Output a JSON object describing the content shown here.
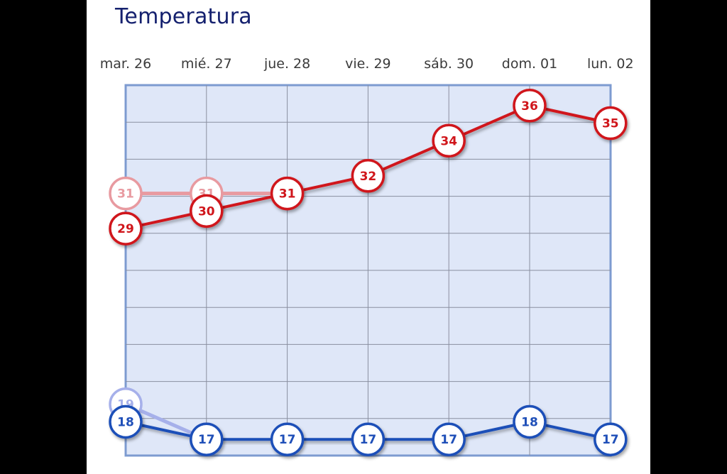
{
  "title": "Temperatura",
  "chart_data": {
    "type": "line",
    "title": "Temperatura",
    "xlabel": "",
    "ylabel": "",
    "categories": [
      "mar. 26",
      "mié. 27",
      "jue. 28",
      "vie. 29",
      "sáb. 30",
      "dom. 01",
      "lun. 02"
    ],
    "grid": true,
    "legend": "none",
    "ylim": [
      16,
      37
    ],
    "series": [
      {
        "values": [
          29,
          30,
          31,
          32,
          34,
          36,
          35
        ],
        "color": "#d0161b",
        "style": "current"
      },
      {
        "values": [
          31,
          31,
          31,
          null,
          null,
          null,
          null
        ],
        "color": "#e89aa0",
        "style": "previous"
      },
      {
        "values": [
          18,
          17,
          17,
          17,
          17,
          18,
          17
        ],
        "color": "#1f4fb8",
        "style": "current"
      },
      {
        "values": [
          19,
          17,
          null,
          null,
          null,
          null,
          null
        ],
        "color": "#a6b0ea",
        "style": "previous"
      }
    ]
  }
}
